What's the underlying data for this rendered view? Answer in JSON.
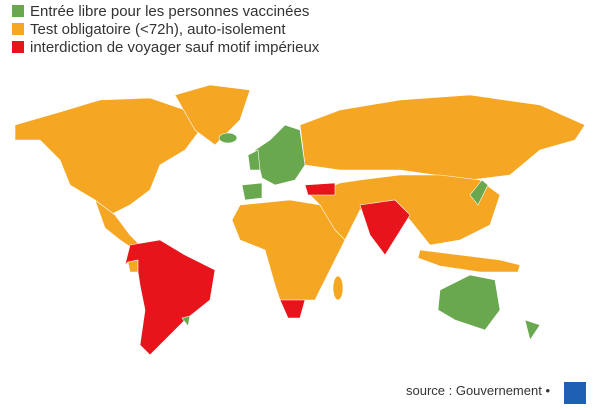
{
  "legend": [
    {
      "label": "Entrée libre pour les personnes vaccinées",
      "color": "#6aa84f"
    },
    {
      "label": "Test obligatoire (<72h), auto-isolement",
      "color": "#f5a623"
    },
    {
      "label": "interdiction de voyager sauf motif impérieux",
      "color": "#e8141b"
    }
  ],
  "source": "source : Gouvernement •"
}
